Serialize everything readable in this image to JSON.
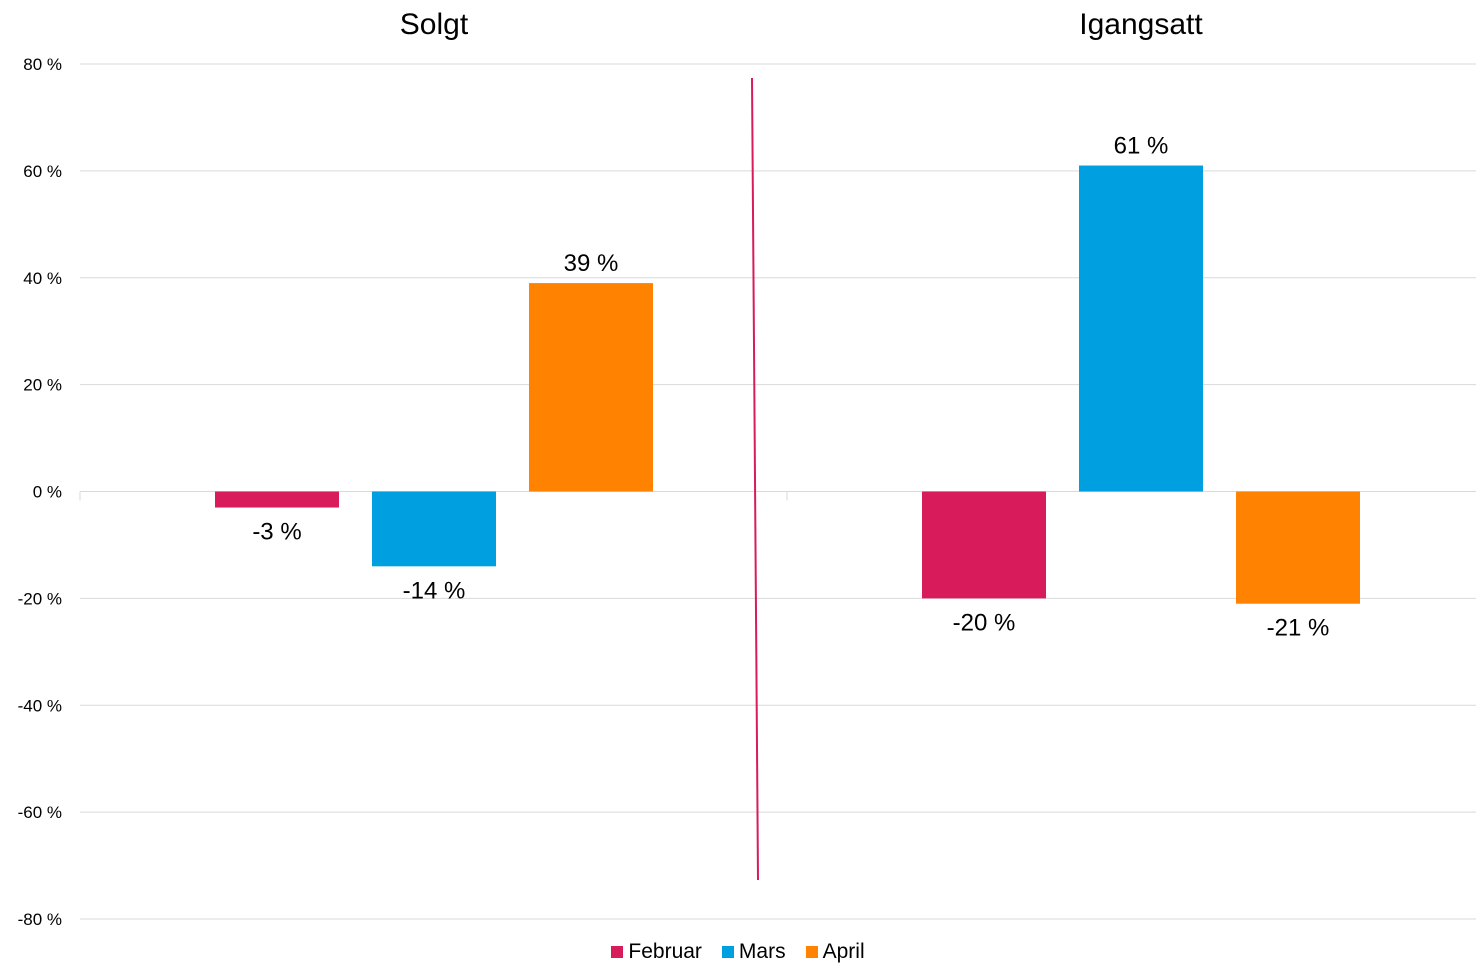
{
  "chart_data": {
    "type": "bar",
    "categories": [
      "Solgt",
      "Igangsatt"
    ],
    "series": [
      {
        "name": "Februar",
        "values": [
          -3,
          -20
        ],
        "labels": [
          "-3 %",
          "-20 %"
        ],
        "color": "#d81b5b"
      },
      {
        "name": "Mars",
        "values": [
          -14,
          61
        ],
        "labels": [
          "-14 %",
          "61 %"
        ],
        "color": "#00a0e0"
      },
      {
        "name": "April",
        "values": [
          39,
          -21
        ],
        "labels": [
          "39 %",
          "-21 %"
        ],
        "color": "#ff8200"
      }
    ],
    "ylim": [
      -80,
      80
    ],
    "yticks": [
      80,
      60,
      40,
      20,
      0,
      -20,
      -40,
      -60,
      -80
    ],
    "ytick_labels": [
      "80 %",
      "60 %",
      "40 %",
      "20 %",
      "0 %",
      "-20 %",
      "-40 %",
      "-60 %",
      "-80 %"
    ],
    "grid": true,
    "legend_position": "bottom",
    "divider_color": "#d81b5b"
  }
}
